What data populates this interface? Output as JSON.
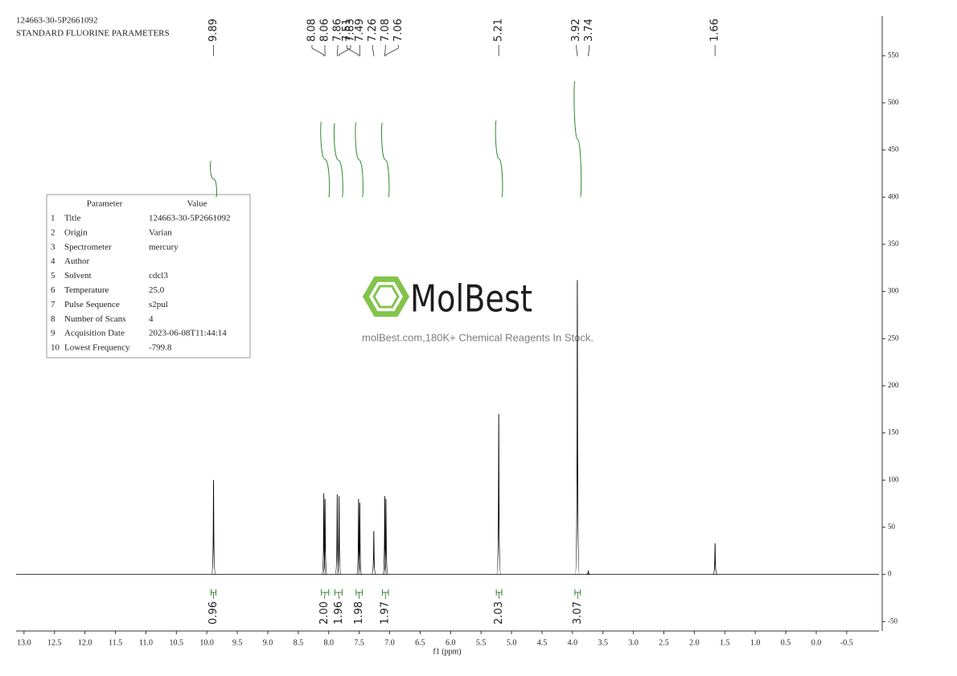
{
  "chart_data": {
    "type": "nmr",
    "header": [
      "124663-30-5P2661092",
      "STANDARD FLUORINE PARAMETERS"
    ],
    "xlabel": "f1 (ppm)",
    "xlim": [
      13.13,
      -1.03
    ],
    "xticks": [
      {
        "value": 13,
        "label": "13.0"
      },
      12.5,
      {
        "value": 12,
        "label": "12.0"
      },
      11.5,
      {
        "value": 11,
        "label": "11.0"
      },
      10.5,
      {
        "value": 10,
        "label": "10.0"
      },
      9.5,
      {
        "value": 9,
        "label": "9.0"
      },
      8.5,
      {
        "value": 8,
        "label": "8.0"
      },
      7.5,
      {
        "value": 7,
        "label": "7.0"
      },
      6.5,
      {
        "value": 6,
        "label": "6.0"
      },
      5.5,
      {
        "value": 5,
        "label": "5.0"
      },
      4.5,
      {
        "value": 4,
        "label": "4.0"
      },
      3.5,
      {
        "value": 3,
        "label": "3.0"
      },
      2.5,
      {
        "value": 2,
        "label": "2.0"
      },
      1.5,
      {
        "value": 1,
        "label": "1.0"
      },
      0.5,
      {
        "value": 0,
        "label": "0.0"
      },
      -0.5
    ],
    "ylim": [
      -60,
      592
    ],
    "yticks": [
      -50,
      0,
      50,
      100,
      150,
      200,
      250,
      300,
      350,
      400,
      450,
      500,
      550
    ],
    "color": "#000000",
    "peaks": {
      "x": [
        9.89,
        8.08,
        8.06,
        7.86,
        7.83,
        7.51,
        7.49,
        7.26,
        7.08,
        7.06,
        5.21,
        3.92,
        3.74,
        1.66
      ],
      "values": [
        100,
        86,
        80,
        85,
        83,
        80,
        76,
        46,
        83,
        80,
        170,
        312,
        4,
        33
      ]
    },
    "integrals": {
      "color": "#2e8b2e",
      "ranges": [
        [
          9.93,
          9.85
        ],
        [
          8.12,
          8.0
        ],
        [
          7.9,
          7.78
        ],
        [
          7.55,
          7.45
        ],
        [
          7.12,
          7.02
        ],
        [
          5.25,
          5.16
        ],
        [
          3.96,
          3.87
        ]
      ],
      "values": [
        0.96,
        2.0,
        1.96,
        1.98,
        1.97,
        2.03,
        3.07
      ],
      "value_labels": [
        "0.96",
        "2.00",
        "1.96",
        "1.98",
        "1.97",
        "2.03",
        "3.07"
      ]
    }
  },
  "parameter_table": {
    "header": [
      "Parameter",
      "Value"
    ],
    "rows": [
      [
        "1",
        "Title",
        "124663-30-5P2661092"
      ],
      [
        "2",
        "Origin",
        "Varian"
      ],
      [
        "3",
        "Spectrometer",
        "mercury"
      ],
      [
        "4",
        "Author"
      ],
      [
        "5",
        "Solvent",
        "cdcl3"
      ],
      [
        "6",
        "Temperature",
        "25.0"
      ],
      [
        "7",
        "Pulse Sequence",
        "s2pul"
      ],
      [
        "8",
        "Number of Scans",
        "4"
      ],
      [
        "9",
        "Acquisition Date",
        "2023-06-08T11:44:14"
      ],
      [
        "10",
        "Lowest Frequency",
        "-799.8"
      ]
    ]
  },
  "watermark": {
    "logo": "MolBest",
    "text": "molBest.com,180K+ Chemical Reagents In Stock."
  }
}
